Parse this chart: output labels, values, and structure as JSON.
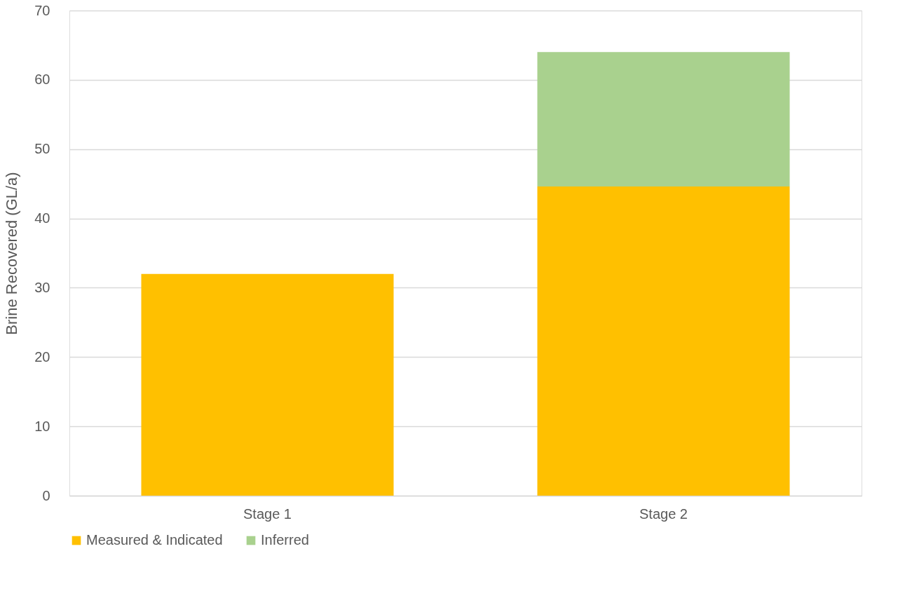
{
  "chart_data": {
    "type": "bar",
    "ylabel": "Brine Recovered (GL/a)",
    "categories": [
      "Stage 1",
      "Stage 2"
    ],
    "stacked": true,
    "series": [
      {
        "name": "Measured & Indicated",
        "color": "#ffc000",
        "values": [
          32,
          44.6
        ]
      },
      {
        "name": "Inferred",
        "color": "#a9d18e",
        "values": [
          null,
          19.4
        ]
      }
    ],
    "ylim": [
      0,
      70
    ],
    "yticks": [
      0,
      10,
      20,
      30,
      40,
      50,
      60,
      70
    ],
    "grid": "y",
    "legend": "bottom"
  }
}
